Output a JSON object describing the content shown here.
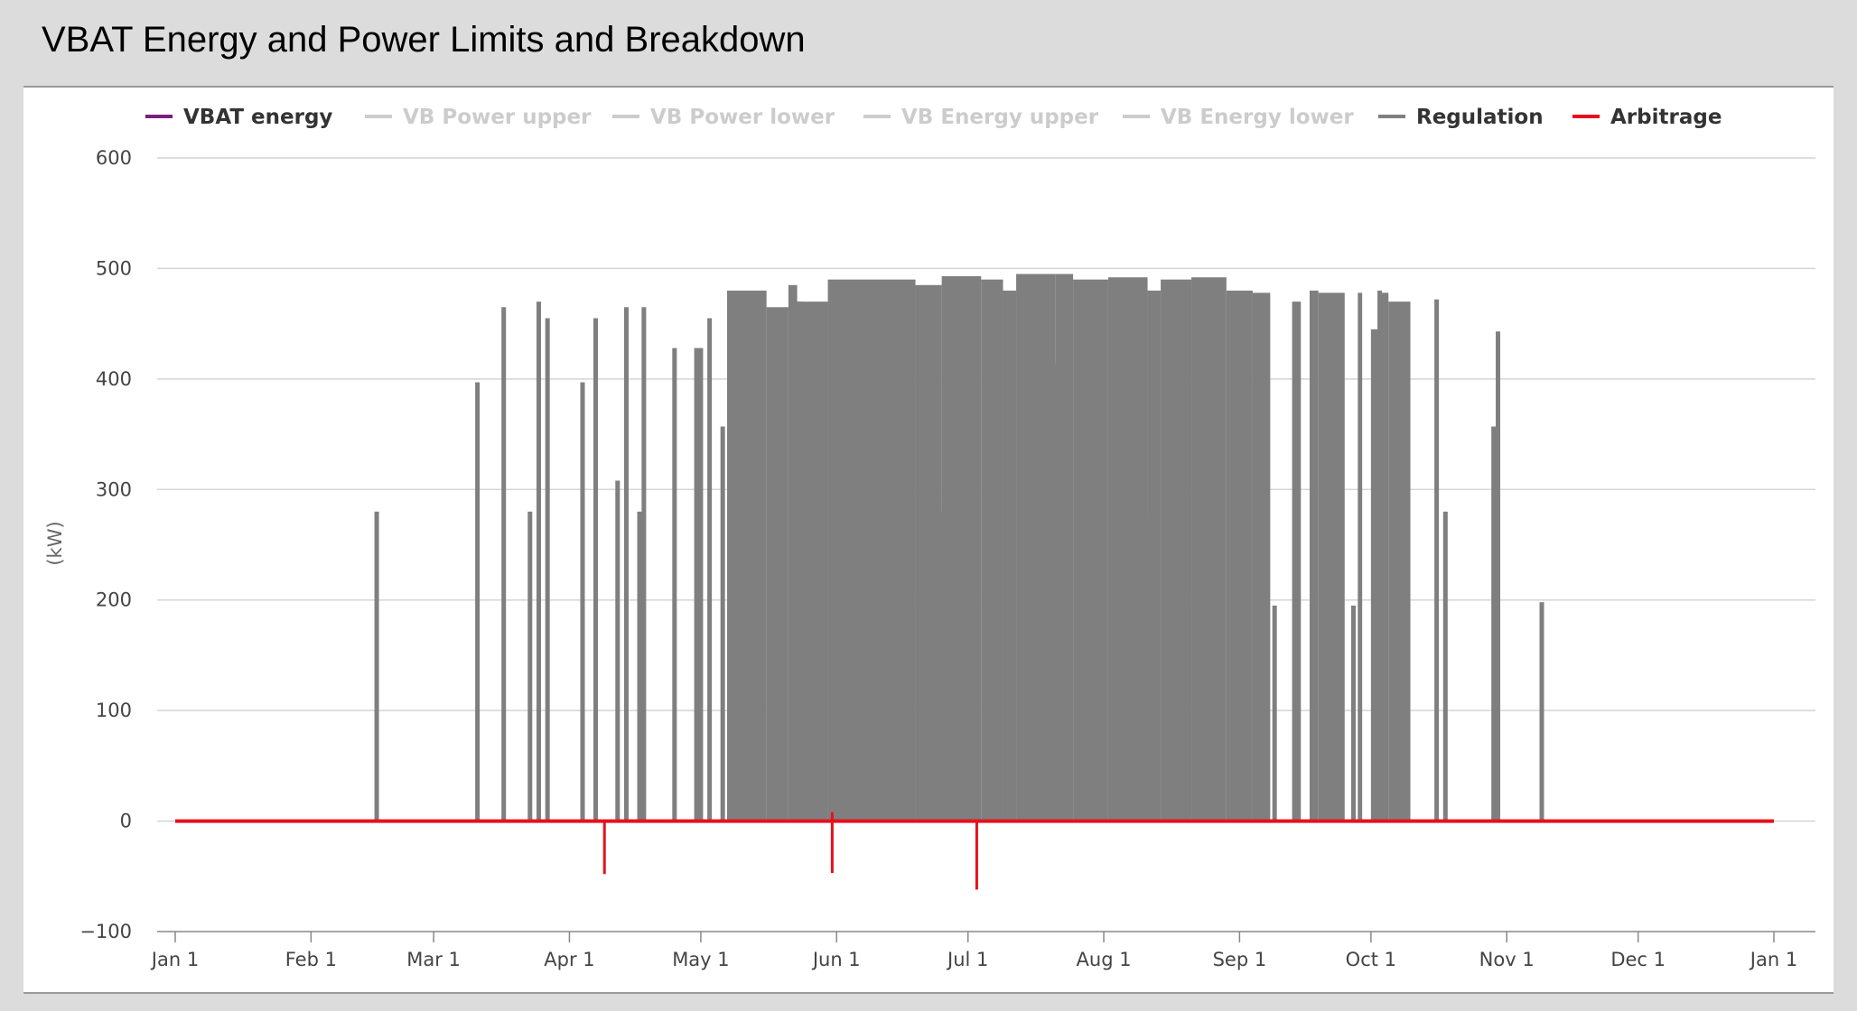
{
  "title": "VBAT Energy and Power Limits and Breakdown",
  "chart_data": {
    "type": "line",
    "ylabel": "(kW)",
    "xlabel": "",
    "ylim": [
      -100,
      600
    ],
    "yticks": [
      -100,
      0,
      100,
      200,
      300,
      400,
      500,
      600
    ],
    "xlim": [
      0,
      365
    ],
    "xticks": [
      {
        "label": "Jan 1",
        "day": 0
      },
      {
        "label": "Feb 1",
        "day": 31
      },
      {
        "label": "Mar 1",
        "day": 59
      },
      {
        "label": "Apr 1",
        "day": 90
      },
      {
        "label": "May 1",
        "day": 120
      },
      {
        "label": "Jun 1",
        "day": 151
      },
      {
        "label": "Jul 1",
        "day": 181
      },
      {
        "label": "Aug 1",
        "day": 212
      },
      {
        "label": "Sep 1",
        "day": 243
      },
      {
        "label": "Oct 1",
        "day": 273
      },
      {
        "label": "Nov 1",
        "day": 304
      },
      {
        "label": "Dec 1",
        "day": 334
      },
      {
        "label": "Jan 1",
        "day": 365
      }
    ],
    "grid": true,
    "legend_position": "top",
    "legend": [
      {
        "name": "VBAT energy",
        "color": "#7b1f7e",
        "visible": true
      },
      {
        "name": "VB Power upper",
        "color": "#cccccc",
        "visible": false
      },
      {
        "name": "VB Power lower",
        "color": "#cccccc",
        "visible": false
      },
      {
        "name": "VB Energy upper",
        "color": "#cccccc",
        "visible": false
      },
      {
        "name": "VB Energy lower",
        "color": "#cccccc",
        "visible": false
      },
      {
        "name": "Regulation",
        "color": "#7f7f7f",
        "visible": true
      },
      {
        "name": "Arbitrage",
        "color": "#e8101c",
        "visible": true
      }
    ],
    "series": [
      {
        "name": "Regulation",
        "color": "#7f7f7f",
        "spikes": [
          [
            46,
            280
          ],
          [
            69,
            397
          ],
          [
            75,
            465
          ],
          [
            81,
            280
          ],
          [
            83,
            470
          ],
          [
            85,
            455
          ],
          [
            93,
            397
          ],
          [
            96,
            455
          ],
          [
            101,
            308
          ],
          [
            103,
            465
          ],
          [
            106,
            280
          ],
          [
            107,
            465
          ],
          [
            114,
            428
          ],
          [
            119,
            428
          ],
          [
            120,
            428
          ],
          [
            122,
            455
          ],
          [
            125,
            357
          ],
          [
            146,
            278
          ],
          [
            156,
            398
          ],
          [
            170,
            444
          ],
          [
            175,
            280
          ],
          [
            200,
            193
          ],
          [
            201,
            414
          ],
          [
            204,
            395
          ],
          [
            217,
            278
          ],
          [
            222,
            278
          ],
          [
            237,
            195
          ],
          [
            251,
            195
          ],
          [
            269,
            195
          ],
          [
            275,
            480
          ],
          [
            288,
            472
          ],
          [
            290,
            280
          ],
          [
            301,
            357
          ],
          [
            312,
            198
          ],
          [
            302,
            443
          ]
        ],
        "bands": [
          [
            126,
            135,
            480
          ],
          [
            135,
            140,
            465
          ],
          [
            140,
            142,
            485
          ],
          [
            141,
            143,
            470
          ],
          [
            142,
            149,
            470
          ],
          [
            149,
            156,
            490
          ],
          [
            156,
            169,
            490
          ],
          [
            169,
            175,
            485
          ],
          [
            175,
            184,
            493
          ],
          [
            184,
            189,
            490
          ],
          [
            189,
            192,
            480
          ],
          [
            192,
            201,
            495
          ],
          [
            201,
            205,
            495
          ],
          [
            205,
            213,
            490
          ],
          [
            213,
            222,
            492
          ],
          [
            222,
            225,
            480
          ],
          [
            225,
            232,
            490
          ],
          [
            232,
            240,
            492
          ],
          [
            240,
            246,
            480
          ],
          [
            246,
            250,
            478
          ],
          [
            255,
            257,
            470
          ],
          [
            259,
            261,
            480
          ],
          [
            261,
            267,
            478
          ],
          [
            270,
            271,
            478
          ],
          [
            273,
            275,
            445
          ],
          [
            275,
            277,
            478
          ],
          [
            277,
            282,
            470
          ]
        ]
      },
      {
        "name": "Arbitrage",
        "color": "#e8101c",
        "baseline": 0,
        "spikes": [
          [
            98,
            -48
          ],
          [
            150,
            -47
          ],
          [
            183,
            -62
          ]
        ],
        "up_spikes": [
          [
            150,
            8
          ]
        ]
      }
    ]
  }
}
